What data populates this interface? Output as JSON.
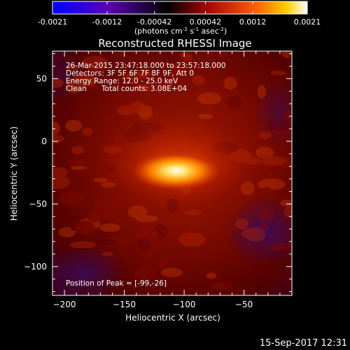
{
  "chart_data": {
    "type": "heatmap",
    "title": "Reconstructed RHESSI Image",
    "xlabel": "Heliocentric X (arcsec)",
    "ylabel": "Heliocentric Y (arcsec)",
    "xlim": [
      -210,
      -10
    ],
    "ylim": [
      -123,
      72
    ],
    "xticks": [
      -200,
      -150,
      -100,
      -50
    ],
    "yticks": [
      50,
      0,
      -50,
      -100
    ],
    "colorbar": {
      "ticks": [
        "-0.0021",
        "-0.0012",
        "-0.00042",
        "0.00042",
        "0.0012",
        "0.0021"
      ],
      "range": [
        -0.0021,
        0.0021
      ],
      "units": "(photons cm",
      "units_sup1": "-2",
      "units_mid": " s",
      "units_sup2": "-1",
      "units_mid2": " asec",
      "units_sup3": "-2",
      "units_end": ")",
      "colors": [
        "#0000ff",
        "#5500cc",
        "#000000",
        "#990000",
        "#ff5500",
        "#ffcc00",
        "#ffffff"
      ]
    },
    "annotations": [
      "26-Mar-2015 23:47:18.000 to 23:57:18.000",
      "Detectors: 3F 5F 6F 7F 8F 9F, Att 0",
      "Energy Range: 12.0 - 25.0 keV",
      "Clean",
      "Total counts: 3.08E+04"
    ],
    "peak_label": "Position of Peak = [-99,-26]",
    "peak": [
      -99,
      -26
    ]
  },
  "timestamp": "15-Sep-2017 12:31"
}
